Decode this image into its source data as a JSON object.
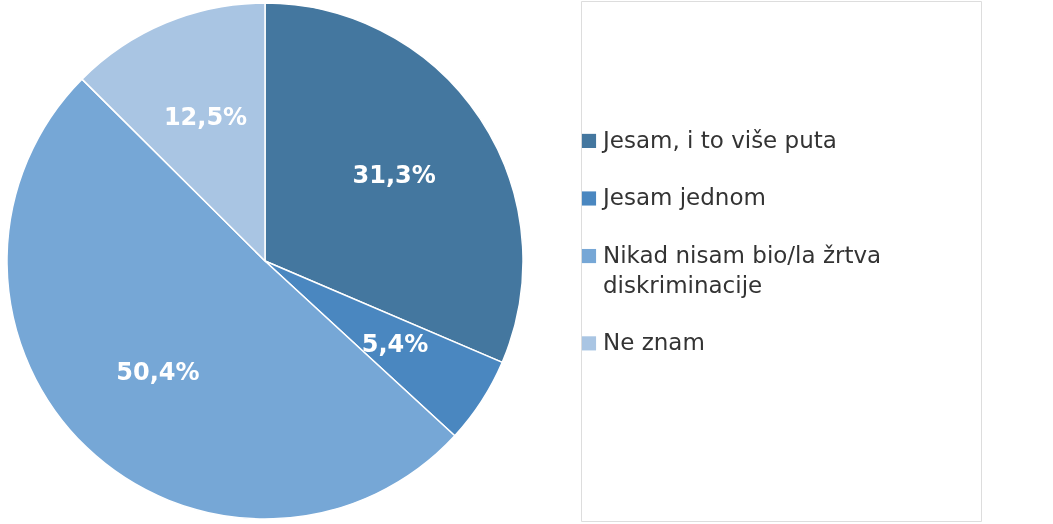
{
  "chart_data": {
    "type": "pie",
    "categories": [
      "Jesam, i to više puta",
      "Jesam jednom",
      "Nikad nisam bio/la žrtva diskriminacije",
      "Ne znam"
    ],
    "values": [
      31.3,
      5.4,
      50.4,
      12.5
    ],
    "value_labels": [
      "31,3%",
      "5,4%",
      "50,4%",
      "12,5%"
    ],
    "colors": [
      "#44779f",
      "#4a87c0",
      "#76a7d6",
      "#a9c5e3"
    ],
    "legend": "right"
  }
}
